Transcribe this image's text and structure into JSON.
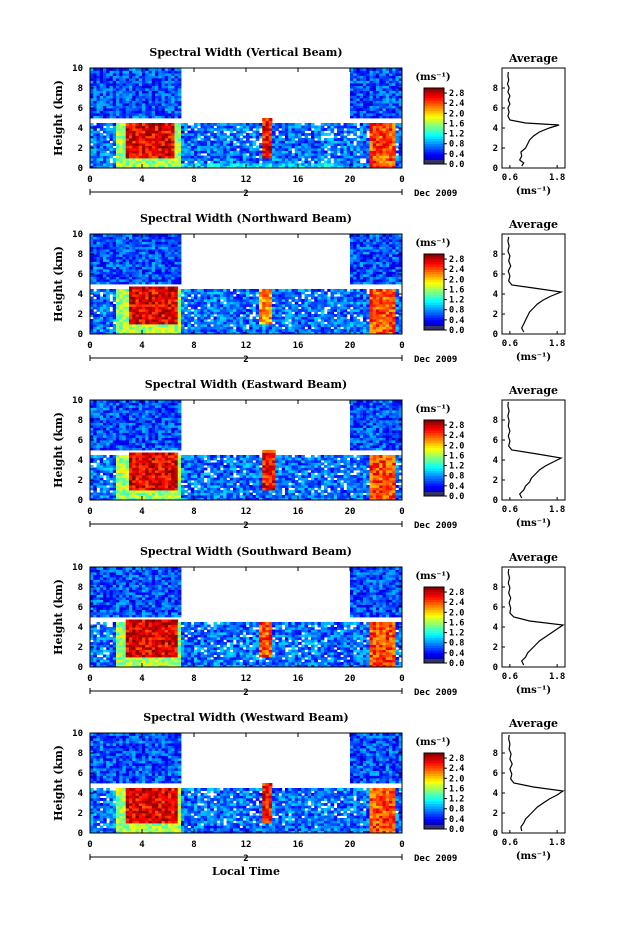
{
  "chart_data": [
    {
      "type": "heatmap",
      "title": "Spectral Width (Vertical Beam)",
      "ylabel": "Height (km)",
      "xticks": [
        "0",
        "4",
        "8",
        "12",
        "16",
        "20",
        "0"
      ],
      "yticks": [
        "0",
        "2",
        "4",
        "6",
        "8",
        "10"
      ],
      "xlim": [
        0,
        24
      ],
      "ylim": [
        0,
        10
      ],
      "date_label": "Dec 2009",
      "day_markers": [
        "2"
      ],
      "colorbar": {
        "unit": "(ms⁻¹)",
        "ticks": [
          "0.0",
          "0.4",
          "0.8",
          "1.2",
          "1.6",
          "2.0",
          "2.4",
          "2.8"
        ],
        "range": [
          0,
          3.0
        ]
      },
      "average": {
        "title": "Average",
        "xticks": [
          "0.6",
          "1.8"
        ],
        "xunit": "(ms⁻¹)",
        "yticks": [
          "0",
          "2",
          "4",
          "6",
          "8"
        ],
        "xlim": [
          0.4,
          2.0
        ],
        "ylim": [
          0,
          10
        ],
        "profile": [
          [
            0.9,
            0.2
          ],
          [
            0.95,
            0.5
          ],
          [
            0.85,
            0.8
          ],
          [
            0.9,
            1.2
          ],
          [
            0.88,
            1.6
          ],
          [
            1.0,
            2.0
          ],
          [
            1.05,
            2.4
          ],
          [
            1.1,
            2.8
          ],
          [
            1.2,
            3.2
          ],
          [
            1.35,
            3.6
          ],
          [
            1.6,
            4.0
          ],
          [
            1.85,
            4.3
          ],
          [
            1.0,
            4.5
          ],
          [
            0.6,
            4.8
          ],
          [
            0.55,
            5.2
          ],
          [
            0.58,
            5.6
          ],
          [
            0.55,
            6.0
          ],
          [
            0.6,
            6.4
          ],
          [
            0.56,
            6.8
          ],
          [
            0.6,
            7.2
          ],
          [
            0.55,
            7.6
          ],
          [
            0.58,
            8.0
          ],
          [
            0.54,
            8.4
          ],
          [
            0.57,
            8.8
          ],
          [
            0.55,
            9.2
          ],
          [
            0.56,
            9.6
          ]
        ]
      },
      "blocks": [
        {
          "t0": 0,
          "t1": 7,
          "h0": 5,
          "h1": 10,
          "v": 0.6
        },
        {
          "t0": 20,
          "t1": 24,
          "h0": 5,
          "h1": 10,
          "v": 0.6
        },
        {
          "t0": 0,
          "t1": 24,
          "h0": 0,
          "h1": 4.5,
          "v": 0.7
        },
        {
          "t0": 2,
          "t1": 7,
          "h0": 0,
          "h1": 4.5,
          "v": 1.6
        },
        {
          "t0": 2.8,
          "t1": 6.5,
          "h0": 1,
          "h1": 4.6,
          "v": 2.7
        },
        {
          "t0": 13.2,
          "t1": 14,
          "h0": 1,
          "h1": 5,
          "v": 2.6
        },
        {
          "t0": 21.5,
          "t1": 23.5,
          "h0": 0,
          "h1": 4.6,
          "v": 2.4
        },
        {
          "t0": 7,
          "t1": 20,
          "h0": 0,
          "h1": 0.6,
          "v": 1.0
        }
      ]
    },
    {
      "type": "heatmap",
      "title": "Spectral Width (Northward Beam)",
      "ylabel": "Height (km)",
      "xticks": [
        "0",
        "4",
        "8",
        "12",
        "16",
        "20",
        "0"
      ],
      "yticks": [
        "0",
        "2",
        "4",
        "6",
        "8",
        "10"
      ],
      "xlim": [
        0,
        24
      ],
      "ylim": [
        0,
        10
      ],
      "date_label": "Dec 2009",
      "day_markers": [
        "2"
      ],
      "colorbar": {
        "unit": "(ms⁻¹)",
        "ticks": [
          "0.0",
          "0.4",
          "0.8",
          "1.2",
          "1.6",
          "2.0",
          "2.4",
          "2.8"
        ],
        "range": [
          0,
          3.0
        ]
      },
      "average": {
        "title": "Average",
        "xticks": [
          "0.6",
          "1.8"
        ],
        "xunit": "(ms⁻¹)",
        "yticks": [
          "0",
          "2",
          "4",
          "6",
          "8"
        ],
        "xlim": [
          0.4,
          2.0
        ],
        "ylim": [
          0,
          10
        ],
        "profile": [
          [
            0.95,
            0.2
          ],
          [
            0.9,
            0.6
          ],
          [
            0.95,
            1.0
          ],
          [
            1.0,
            1.4
          ],
          [
            1.05,
            1.8
          ],
          [
            1.1,
            2.2
          ],
          [
            1.2,
            2.6
          ],
          [
            1.3,
            3.0
          ],
          [
            1.45,
            3.4
          ],
          [
            1.65,
            3.8
          ],
          [
            1.9,
            4.2
          ],
          [
            1.2,
            4.6
          ],
          [
            0.65,
            4.9
          ],
          [
            0.57,
            5.3
          ],
          [
            0.6,
            5.8
          ],
          [
            0.56,
            6.3
          ],
          [
            0.62,
            6.8
          ],
          [
            0.57,
            7.3
          ],
          [
            0.6,
            7.8
          ],
          [
            0.55,
            8.3
          ],
          [
            0.58,
            8.8
          ],
          [
            0.55,
            9.3
          ],
          [
            0.57,
            9.7
          ]
        ]
      },
      "blocks": [
        {
          "t0": 0,
          "t1": 7,
          "h0": 5,
          "h1": 10,
          "v": 0.6
        },
        {
          "t0": 20,
          "t1": 24,
          "h0": 5,
          "h1": 10,
          "v": 0.6
        },
        {
          "t0": 0,
          "t1": 24,
          "h0": 0,
          "h1": 4.5,
          "v": 0.7
        },
        {
          "t0": 2,
          "t1": 7,
          "h0": 0,
          "h1": 4.5,
          "v": 1.6
        },
        {
          "t0": 3,
          "t1": 6.8,
          "h0": 1,
          "h1": 4.8,
          "v": 2.7
        },
        {
          "t0": 13,
          "t1": 14,
          "h0": 1,
          "h1": 4.5,
          "v": 2.2
        },
        {
          "t0": 21.5,
          "t1": 23.5,
          "h0": 0,
          "h1": 4.6,
          "v": 2.4
        }
      ]
    },
    {
      "type": "heatmap",
      "title": "Spectral Width (Eastward Beam)",
      "ylabel": "Height (km)",
      "xticks": [
        "0",
        "4",
        "8",
        "12",
        "16",
        "20",
        "0"
      ],
      "yticks": [
        "0",
        "2",
        "4",
        "6",
        "8",
        "10"
      ],
      "xlim": [
        0,
        24
      ],
      "ylim": [
        0,
        10
      ],
      "date_label": "Dec 2009",
      "day_markers": [
        "2"
      ],
      "colorbar": {
        "unit": "(ms⁻¹)",
        "ticks": [
          "0.0",
          "0.4",
          "0.8",
          "1.2",
          "1.6",
          "2.0",
          "2.4",
          "2.8"
        ],
        "range": [
          0,
          3.0
        ]
      },
      "average": {
        "title": "Average",
        "xticks": [
          "0.6",
          "1.8"
        ],
        "xunit": "(ms⁻¹)",
        "yticks": [
          "0",
          "2",
          "4",
          "6",
          "8"
        ],
        "xlim": [
          0.4,
          2.0
        ],
        "ylim": [
          0,
          10
        ],
        "profile": [
          [
            0.9,
            0.2
          ],
          [
            0.85,
            0.6
          ],
          [
            0.95,
            1.0
          ],
          [
            1.0,
            1.4
          ],
          [
            1.1,
            1.8
          ],
          [
            1.15,
            2.2
          ],
          [
            1.25,
            2.6
          ],
          [
            1.35,
            3.0
          ],
          [
            1.5,
            3.4
          ],
          [
            1.7,
            3.8
          ],
          [
            1.9,
            4.2
          ],
          [
            1.3,
            4.6
          ],
          [
            0.65,
            5.0
          ],
          [
            0.57,
            5.4
          ],
          [
            0.6,
            5.9
          ],
          [
            0.56,
            6.4
          ],
          [
            0.6,
            6.9
          ],
          [
            0.56,
            7.4
          ],
          [
            0.58,
            7.9
          ],
          [
            0.55,
            8.4
          ],
          [
            0.58,
            8.9
          ],
          [
            0.55,
            9.4
          ],
          [
            0.56,
            9.8
          ]
        ]
      },
      "blocks": [
        {
          "t0": 0,
          "t1": 7,
          "h0": 5,
          "h1": 10,
          "v": 0.6
        },
        {
          "t0": 20,
          "t1": 24,
          "h0": 5,
          "h1": 10,
          "v": 0.6
        },
        {
          "t0": 0,
          "t1": 24,
          "h0": 0,
          "h1": 4.5,
          "v": 0.7
        },
        {
          "t0": 2,
          "t1": 7,
          "h0": 0,
          "h1": 4.5,
          "v": 1.6
        },
        {
          "t0": 3,
          "t1": 6.8,
          "h0": 1,
          "h1": 4.8,
          "v": 2.7
        },
        {
          "t0": 13.2,
          "t1": 14.2,
          "h0": 1,
          "h1": 5,
          "v": 2.6
        },
        {
          "t0": 21.5,
          "t1": 23.5,
          "h0": 0,
          "h1": 4.6,
          "v": 2.4
        }
      ]
    },
    {
      "type": "heatmap",
      "title": "Spectral Width (Southward Beam)",
      "ylabel": "Height (km)",
      "xticks": [
        "0",
        "4",
        "8",
        "12",
        "16",
        "20",
        "0"
      ],
      "yticks": [
        "0",
        "2",
        "4",
        "6",
        "8",
        "10"
      ],
      "xlim": [
        0,
        24
      ],
      "ylim": [
        0,
        10
      ],
      "date_label": "Dec 2009",
      "day_markers": [
        "2"
      ],
      "colorbar": {
        "unit": "(ms⁻¹)",
        "ticks": [
          "0.0",
          "0.4",
          "0.8",
          "1.2",
          "1.6",
          "2.0",
          "2.4",
          "2.8"
        ],
        "range": [
          0,
          3.0
        ]
      },
      "average": {
        "title": "Average",
        "xticks": [
          "0.6",
          "1.8"
        ],
        "xunit": "(ms⁻¹)",
        "yticks": [
          "0",
          "2",
          "4",
          "6",
          "8"
        ],
        "xlim": [
          0.4,
          2.0
        ],
        "ylim": [
          0,
          10
        ],
        "profile": [
          [
            0.95,
            0.2
          ],
          [
            0.9,
            0.6
          ],
          [
            1.0,
            1.0
          ],
          [
            1.05,
            1.4
          ],
          [
            1.15,
            1.8
          ],
          [
            1.25,
            2.2
          ],
          [
            1.35,
            2.6
          ],
          [
            1.5,
            3.0
          ],
          [
            1.65,
            3.4
          ],
          [
            1.8,
            3.8
          ],
          [
            1.95,
            4.2
          ],
          [
            1.1,
            4.6
          ],
          [
            0.7,
            5.0
          ],
          [
            0.6,
            5.4
          ],
          [
            0.62,
            5.9
          ],
          [
            0.58,
            6.4
          ],
          [
            0.62,
            6.9
          ],
          [
            0.57,
            7.4
          ],
          [
            0.6,
            7.9
          ],
          [
            0.56,
            8.4
          ],
          [
            0.59,
            8.9
          ],
          [
            0.56,
            9.4
          ],
          [
            0.57,
            9.8
          ]
        ]
      },
      "blocks": [
        {
          "t0": 0,
          "t1": 7,
          "h0": 5,
          "h1": 10,
          "v": 0.6
        },
        {
          "t0": 20,
          "t1": 24,
          "h0": 5,
          "h1": 10,
          "v": 0.6
        },
        {
          "t0": 0,
          "t1": 24,
          "h0": 0,
          "h1": 4.5,
          "v": 0.7
        },
        {
          "t0": 2,
          "t1": 7,
          "h0": 0,
          "h1": 4.5,
          "v": 1.6
        },
        {
          "t0": 2.8,
          "t1": 6.8,
          "h0": 1,
          "h1": 4.8,
          "v": 2.7
        },
        {
          "t0": 13,
          "t1": 14,
          "h0": 1,
          "h1": 4.5,
          "v": 2.4
        },
        {
          "t0": 21.5,
          "t1": 23.5,
          "h0": 0,
          "h1": 4.6,
          "v": 2.4
        }
      ]
    },
    {
      "type": "heatmap",
      "title": "Spectral Width (Westward Beam)",
      "ylabel": "Height (km)",
      "xlabel": "Local Time",
      "xticks": [
        "0",
        "4",
        "8",
        "12",
        "16",
        "20",
        "0"
      ],
      "yticks": [
        "0",
        "2",
        "4",
        "6",
        "8",
        "10"
      ],
      "xlim": [
        0,
        24
      ],
      "ylim": [
        0,
        10
      ],
      "date_label": "Dec 2009",
      "day_markers": [
        "2"
      ],
      "colorbar": {
        "unit": "(ms⁻¹)",
        "ticks": [
          "0.0",
          "0.4",
          "0.8",
          "1.2",
          "1.6",
          "2.0",
          "2.4",
          "2.8"
        ],
        "range": [
          0,
          3.0
        ]
      },
      "average": {
        "title": "Average",
        "xticks": [
          "0.6",
          "1.8"
        ],
        "xunit": "(ms⁻¹)",
        "yticks": [
          "0",
          "2",
          "4",
          "6",
          "8"
        ],
        "xlim": [
          0.4,
          2.0
        ],
        "ylim": [
          0,
          10
        ],
        "profile": [
          [
            0.9,
            0.2
          ],
          [
            0.88,
            0.6
          ],
          [
            0.95,
            1.0
          ],
          [
            1.0,
            1.4
          ],
          [
            1.1,
            1.8
          ],
          [
            1.2,
            2.2
          ],
          [
            1.3,
            2.6
          ],
          [
            1.45,
            3.0
          ],
          [
            1.6,
            3.4
          ],
          [
            1.8,
            3.8
          ],
          [
            1.95,
            4.2
          ],
          [
            1.2,
            4.6
          ],
          [
            0.7,
            5.0
          ],
          [
            0.62,
            5.4
          ],
          [
            0.65,
            5.9
          ],
          [
            0.6,
            6.4
          ],
          [
            0.66,
            6.9
          ],
          [
            0.6,
            7.4
          ],
          [
            0.63,
            7.9
          ],
          [
            0.58,
            8.4
          ],
          [
            0.6,
            8.9
          ],
          [
            0.57,
            9.4
          ],
          [
            0.58,
            9.8
          ]
        ]
      },
      "blocks": [
        {
          "t0": 0,
          "t1": 7,
          "h0": 5,
          "h1": 10,
          "v": 0.6
        },
        {
          "t0": 20,
          "t1": 24,
          "h0": 5,
          "h1": 10,
          "v": 0.6
        },
        {
          "t0": 0,
          "t1": 24,
          "h0": 0,
          "h1": 4.5,
          "v": 0.7
        },
        {
          "t0": 2,
          "t1": 7,
          "h0": 0,
          "h1": 4.5,
          "v": 1.6
        },
        {
          "t0": 2.8,
          "t1": 6.8,
          "h0": 1,
          "h1": 4.6,
          "v": 2.7
        },
        {
          "t0": 13.2,
          "t1": 14,
          "h0": 1,
          "h1": 5,
          "v": 2.6
        },
        {
          "t0": 21.5,
          "t1": 23.5,
          "h0": 0,
          "h1": 4.4,
          "v": 2.4
        }
      ]
    }
  ]
}
